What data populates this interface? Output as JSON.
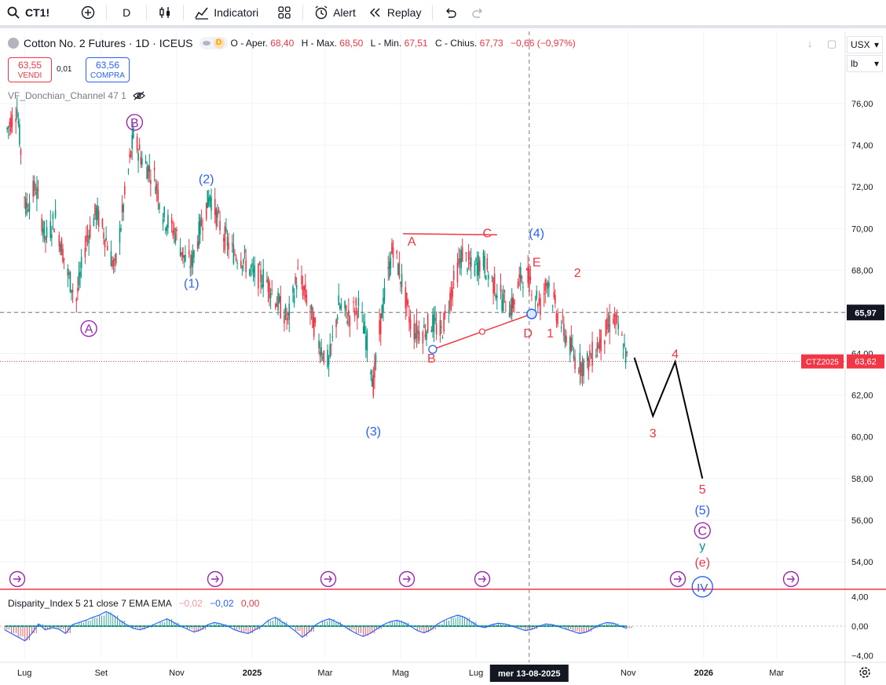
{
  "toolbar": {
    "symbol": "CT1!",
    "interval": "D",
    "indicators_label": "Indicatori",
    "alert_label": "Alert",
    "replay_label": "Replay"
  },
  "legend": {
    "title": "Cotton No. 2 Futures · 1D · ICEUS",
    "interval_badge": "D",
    "open_label": "O - Aper.",
    "open_value": "68,40",
    "high_label": "H - Max.",
    "high_value": "68,50",
    "low_label": "L - Min.",
    "low_value": "67,51",
    "close_label": "C - Chius.",
    "close_value": "67,73",
    "change": "−0,66 (−0,97%)"
  },
  "trade": {
    "sell_price": "63,55",
    "sell_label": "VENDI",
    "spread": "0,01",
    "buy_price": "63,56",
    "buy_label": "COMPRA"
  },
  "indicator": {
    "donchian": "VF_Donchian_Channel 47 1",
    "disparity_name": "Disparity_Index 5 21 close 7 EMA EMA",
    "disparity_v1": "−0,02",
    "disparity_v2": "−0,02",
    "disparity_v3": "0,00"
  },
  "axis": {
    "currency": "USX",
    "unit": "lb"
  },
  "colors": {
    "up": "#089981",
    "down": "#f23645",
    "wave_blue": "#2962ff",
    "wave_purple": "#9c27b0",
    "wave_red": "#f23645",
    "projection": "#000000",
    "crosshair": "#787b86"
  },
  "chart_data": {
    "type": "candlestick",
    "symbol": "CT1!",
    "interval": "1D",
    "ylim": [
      53,
      77.5
    ],
    "y_ticks": [
      "76,00",
      "74,00",
      "72,00",
      "70,00",
      "68,00",
      "66,00",
      "64,00",
      "62,00",
      "60,00",
      "58,00",
      "56,00",
      "54,00"
    ],
    "x_ticks": [
      "Lug",
      "Set",
      "Nov",
      "2025",
      "Mar",
      "Mag",
      "Lug",
      "Nov",
      "2026",
      "Mar"
    ],
    "crosshair_price": "65,97",
    "crosshair_date": "mer 13-08-2025",
    "contract_label": "CTZ2025",
    "contract_price": "63,62",
    "price_path": [
      {
        "date": "2024-06-15",
        "close": 74.5
      },
      {
        "date": "2024-06-25",
        "close": 75.8
      },
      {
        "date": "2024-07-02",
        "close": 71.0
      },
      {
        "date": "2024-07-10",
        "close": 72.0
      },
      {
        "date": "2024-07-18",
        "close": 69.5
      },
      {
        "date": "2024-07-26",
        "close": 70.5
      },
      {
        "date": "2024-08-05",
        "close": 67.8
      },
      {
        "date": "2024-08-12",
        "close": 66.6
      },
      {
        "date": "2024-08-20",
        "close": 69.5
      },
      {
        "date": "2024-08-28",
        "close": 70.8
      },
      {
        "date": "2024-09-05",
        "close": 69.5
      },
      {
        "date": "2024-09-12",
        "close": 68.0
      },
      {
        "date": "2024-09-20",
        "close": 71.5
      },
      {
        "date": "2024-09-27",
        "close": 74.4
      },
      {
        "date": "2024-10-05",
        "close": 73.2
      },
      {
        "date": "2024-10-14",
        "close": 72.5
      },
      {
        "date": "2024-10-22",
        "close": 70.5
      },
      {
        "date": "2024-10-31",
        "close": 69.8
      },
      {
        "date": "2024-11-08",
        "close": 68.5
      },
      {
        "date": "2024-11-13",
        "close": 68.3
      },
      {
        "date": "2024-11-22",
        "close": 70.5
      },
      {
        "date": "2024-11-28",
        "close": 71.6
      },
      {
        "date": "2024-12-08",
        "close": 69.8
      },
      {
        "date": "2024-12-16",
        "close": 68.9
      },
      {
        "date": "2024-12-24",
        "close": 68.6
      },
      {
        "date": "2025-01-02",
        "close": 67.8
      },
      {
        "date": "2025-01-12",
        "close": 67.6
      },
      {
        "date": "2025-01-22",
        "close": 66.4
      },
      {
        "date": "2025-01-30",
        "close": 65.6
      },
      {
        "date": "2025-02-07",
        "close": 67.8
      },
      {
        "date": "2025-02-15",
        "close": 66.5
      },
      {
        "date": "2025-02-24",
        "close": 64.5
      },
      {
        "date": "2025-03-04",
        "close": 63.5
      },
      {
        "date": "2025-03-12",
        "close": 66.3
      },
      {
        "date": "2025-03-20",
        "close": 65.8
      },
      {
        "date": "2025-03-28",
        "close": 66.3
      },
      {
        "date": "2025-04-06",
        "close": 64.0
      },
      {
        "date": "2025-04-09",
        "close": 62.5
      },
      {
        "date": "2025-04-16",
        "close": 66.0
      },
      {
        "date": "2025-04-25",
        "close": 69.2
      },
      {
        "date": "2025-05-03",
        "close": 67.2
      },
      {
        "date": "2025-05-10",
        "close": 65.2
      },
      {
        "date": "2025-05-18",
        "close": 65.0
      },
      {
        "date": "2025-05-26",
        "close": 65.5
      },
      {
        "date": "2025-06-03",
        "close": 65.0
      },
      {
        "date": "2025-06-12",
        "close": 67.2
      },
      {
        "date": "2025-06-20",
        "close": 68.8
      },
      {
        "date": "2025-06-28",
        "close": 68.0
      },
      {
        "date": "2025-07-06",
        "close": 68.5
      },
      {
        "date": "2025-07-14",
        "close": 67.5
      },
      {
        "date": "2025-07-22",
        "close": 66.6
      },
      {
        "date": "2025-07-30",
        "close": 66.2
      },
      {
        "date": "2025-08-07",
        "close": 67.8
      },
      {
        "date": "2025-08-14",
        "close": 67.5
      },
      {
        "date": "2025-08-22",
        "close": 66.3
      },
      {
        "date": "2025-08-28",
        "close": 67.6
      },
      {
        "date": "2025-09-04",
        "close": 66.0
      },
      {
        "date": "2025-09-12",
        "close": 64.8
      },
      {
        "date": "2025-09-20",
        "close": 63.6
      },
      {
        "date": "2025-09-28",
        "close": 63.4
      },
      {
        "date": "2025-10-05",
        "close": 64.2
      },
      {
        "date": "2025-10-12",
        "close": 64.8
      },
      {
        "date": "2025-10-20",
        "close": 65.8
      },
      {
        "date": "2025-10-26",
        "close": 64.8
      },
      {
        "date": "2025-10-31",
        "close": 63.7
      }
    ],
    "projection": [
      {
        "date": "2025-11-06",
        "price": 63.8
      },
      {
        "date": "2025-11-21",
        "price": 61.0
      },
      {
        "date": "2025-12-09",
        "price": 63.6
      },
      {
        "date": "2025-12-31",
        "price": 58.0
      }
    ],
    "wave_labels": [
      {
        "text": "B",
        "date": "2024-09-28",
        "price": 75.1,
        "color": "purple",
        "circled": true
      },
      {
        "text": "A",
        "date": "2024-08-22",
        "price": 65.2,
        "color": "purple",
        "circled": true
      },
      {
        "text": "(2)",
        "date": "2024-11-25",
        "price": 72.4,
        "color": "blue",
        "circled": false
      },
      {
        "text": "(1)",
        "date": "2024-11-13",
        "price": 67.4,
        "color": "blue",
        "circled": false
      },
      {
        "text": "(3)",
        "date": "2025-04-09",
        "price": 60.3,
        "color": "blue",
        "circled": false
      },
      {
        "text": "(4)",
        "date": "2025-08-19",
        "price": 69.8,
        "color": "blue",
        "circled": false
      },
      {
        "text": "A",
        "date": "2025-05-10",
        "price": 69.4,
        "color": "red",
        "circled": false
      },
      {
        "text": "B",
        "date": "2025-05-26",
        "price": 63.8,
        "color": "red",
        "circled": false
      },
      {
        "text": "C",
        "date": "2025-07-10",
        "price": 69.8,
        "color": "red",
        "circled": false
      },
      {
        "text": "D",
        "date": "2025-08-12",
        "price": 65.0,
        "color": "red",
        "circled": false
      },
      {
        "text": "E",
        "date": "2025-08-19",
        "price": 68.4,
        "color": "red",
        "circled": false
      },
      {
        "text": "1",
        "date": "2025-08-30",
        "price": 65.0,
        "color": "red",
        "circled": false
      },
      {
        "text": "2",
        "date": "2025-09-21",
        "price": 67.9,
        "color": "red",
        "circled": false
      },
      {
        "text": "3",
        "date": "2025-11-21",
        "price": 60.2,
        "color": "red",
        "circled": false
      },
      {
        "text": "4",
        "date": "2025-12-09",
        "price": 64.0,
        "color": "red",
        "circled": false
      },
      {
        "text": "5",
        "date": "2025-12-31",
        "price": 57.5,
        "color": "red",
        "circled": false
      },
      {
        "text": "(5)",
        "date": "2025-12-31",
        "price": 56.5,
        "color": "blue",
        "circled": false
      },
      {
        "text": "C",
        "date": "2025-12-31",
        "price": 55.5,
        "color": "purple",
        "circled": true
      },
      {
        "text": "y",
        "date": "2025-12-31",
        "price": 54.8,
        "color": "green",
        "circled": false
      },
      {
        "text": "(e)",
        "date": "2025-12-31",
        "price": 54.0,
        "color": "red",
        "circled": false
      },
      {
        "text": "IV",
        "date": "2025-12-31",
        "price": 52.8,
        "color": "blue",
        "circled": true
      }
    ],
    "lines": [
      {
        "name": "AC",
        "from": {
          "date": "2025-05-03",
          "price": 69.75
        },
        "to": {
          "date": "2025-07-18",
          "price": 69.7
        },
        "color": "red"
      },
      {
        "name": "BD",
        "from": {
          "date": "2025-05-27",
          "price": 64.2
        },
        "to": {
          "date": "2025-08-15",
          "price": 65.9
        },
        "color": "red"
      }
    ],
    "disparity": {
      "ylim": [
        -4.8,
        4.8
      ],
      "y_ticks": [
        "4,00",
        "0,00",
        "−4,00"
      ],
      "values": [
        -0.5,
        -1.0,
        -1.5,
        -2.0,
        -1.0,
        0.3,
        -0.5,
        -0.2,
        -0.4,
        -1.0,
        0.2,
        0.5,
        0.8,
        1.2,
        1.5,
        2.0,
        1.5,
        0.8,
        0.2,
        -0.3,
        -0.5,
        -0.2,
        0.2,
        0.6,
        1.0,
        0.5,
        0.0,
        -0.4,
        -0.8,
        -0.5,
        0.2,
        0.5,
        0.3,
        0.0,
        -0.5,
        -0.8,
        -1.0,
        -0.5,
        0.0,
        0.8,
        1.2,
        0.6,
        0.0,
        -0.7,
        -1.5,
        -0.8,
        0.2,
        0.7,
        1.0,
        0.6,
        0.1,
        -0.5,
        -1.0,
        -1.4,
        -1.0,
        -0.4,
        0.2,
        0.6,
        0.8,
        0.5,
        0.0,
        -0.6,
        -0.9,
        -0.5,
        0.3,
        0.8,
        1.2,
        1.5,
        1.2,
        0.6,
        0.0,
        -0.2,
        0.2,
        0.4,
        0.3,
        0.0,
        -0.3,
        -0.6,
        -0.4,
        0.0,
        0.3,
        0.2,
        -0.1,
        -0.4,
        -0.7,
        -1.0,
        -0.8,
        -0.3,
        0.2,
        0.5,
        0.4,
        0.0,
        -0.3
      ]
    }
  }
}
